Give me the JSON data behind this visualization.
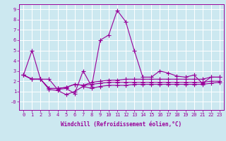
{
  "xlabel": "Windchill (Refroidissement éolien,°C)",
  "bg_color": "#cce8f0",
  "line_color": "#990099",
  "grid_color": "#ffffff",
  "xlim": [
    -0.5,
    23.5
  ],
  "ylim": [
    -0.8,
    9.5
  ],
  "xticks": [
    0,
    1,
    2,
    3,
    4,
    5,
    6,
    7,
    8,
    9,
    10,
    11,
    12,
    13,
    14,
    15,
    16,
    17,
    18,
    19,
    20,
    21,
    22,
    23
  ],
  "yticks": [
    0,
    1,
    2,
    3,
    4,
    5,
    6,
    7,
    8,
    9
  ],
  "ytick_labels": [
    "-0",
    "1",
    "2",
    "3",
    "4",
    "5",
    "6",
    "7",
    "8",
    "9"
  ],
  "series": [
    [
      2.6,
      5.0,
      2.2,
      2.2,
      1.2,
      1.3,
      0.8,
      3.0,
      1.5,
      6.0,
      6.5,
      8.9,
      7.8,
      5.0,
      2.4,
      2.4,
      3.0,
      2.8,
      2.5,
      2.4,
      2.6,
      1.8,
      2.4,
      2.4
    ],
    [
      2.6,
      2.2,
      2.2,
      1.3,
      1.3,
      1.4,
      1.7,
      1.6,
      1.9,
      2.0,
      2.1,
      2.1,
      2.2,
      2.2,
      2.2,
      2.2,
      2.2,
      2.2,
      2.2,
      2.2,
      2.2,
      2.2,
      2.4,
      2.4
    ],
    [
      2.6,
      2.2,
      2.2,
      1.3,
      1.3,
      1.4,
      1.7,
      1.6,
      1.7,
      1.8,
      1.9,
      1.9,
      1.9,
      1.9,
      1.9,
      1.9,
      1.9,
      1.9,
      1.9,
      1.9,
      1.9,
      1.9,
      2.0,
      2.0
    ],
    [
      2.6,
      2.2,
      2.2,
      1.2,
      1.1,
      0.7,
      1.0,
      1.5,
      1.3,
      1.5,
      1.6,
      1.6,
      1.6,
      1.7,
      1.7,
      1.7,
      1.7,
      1.7,
      1.7,
      1.7,
      1.7,
      1.7,
      1.8,
      1.9
    ]
  ],
  "marker": "+",
  "markersize": 4,
  "linewidth": 0.8,
  "tick_fontsize": 5.0,
  "xlabel_fontsize": 5.5
}
